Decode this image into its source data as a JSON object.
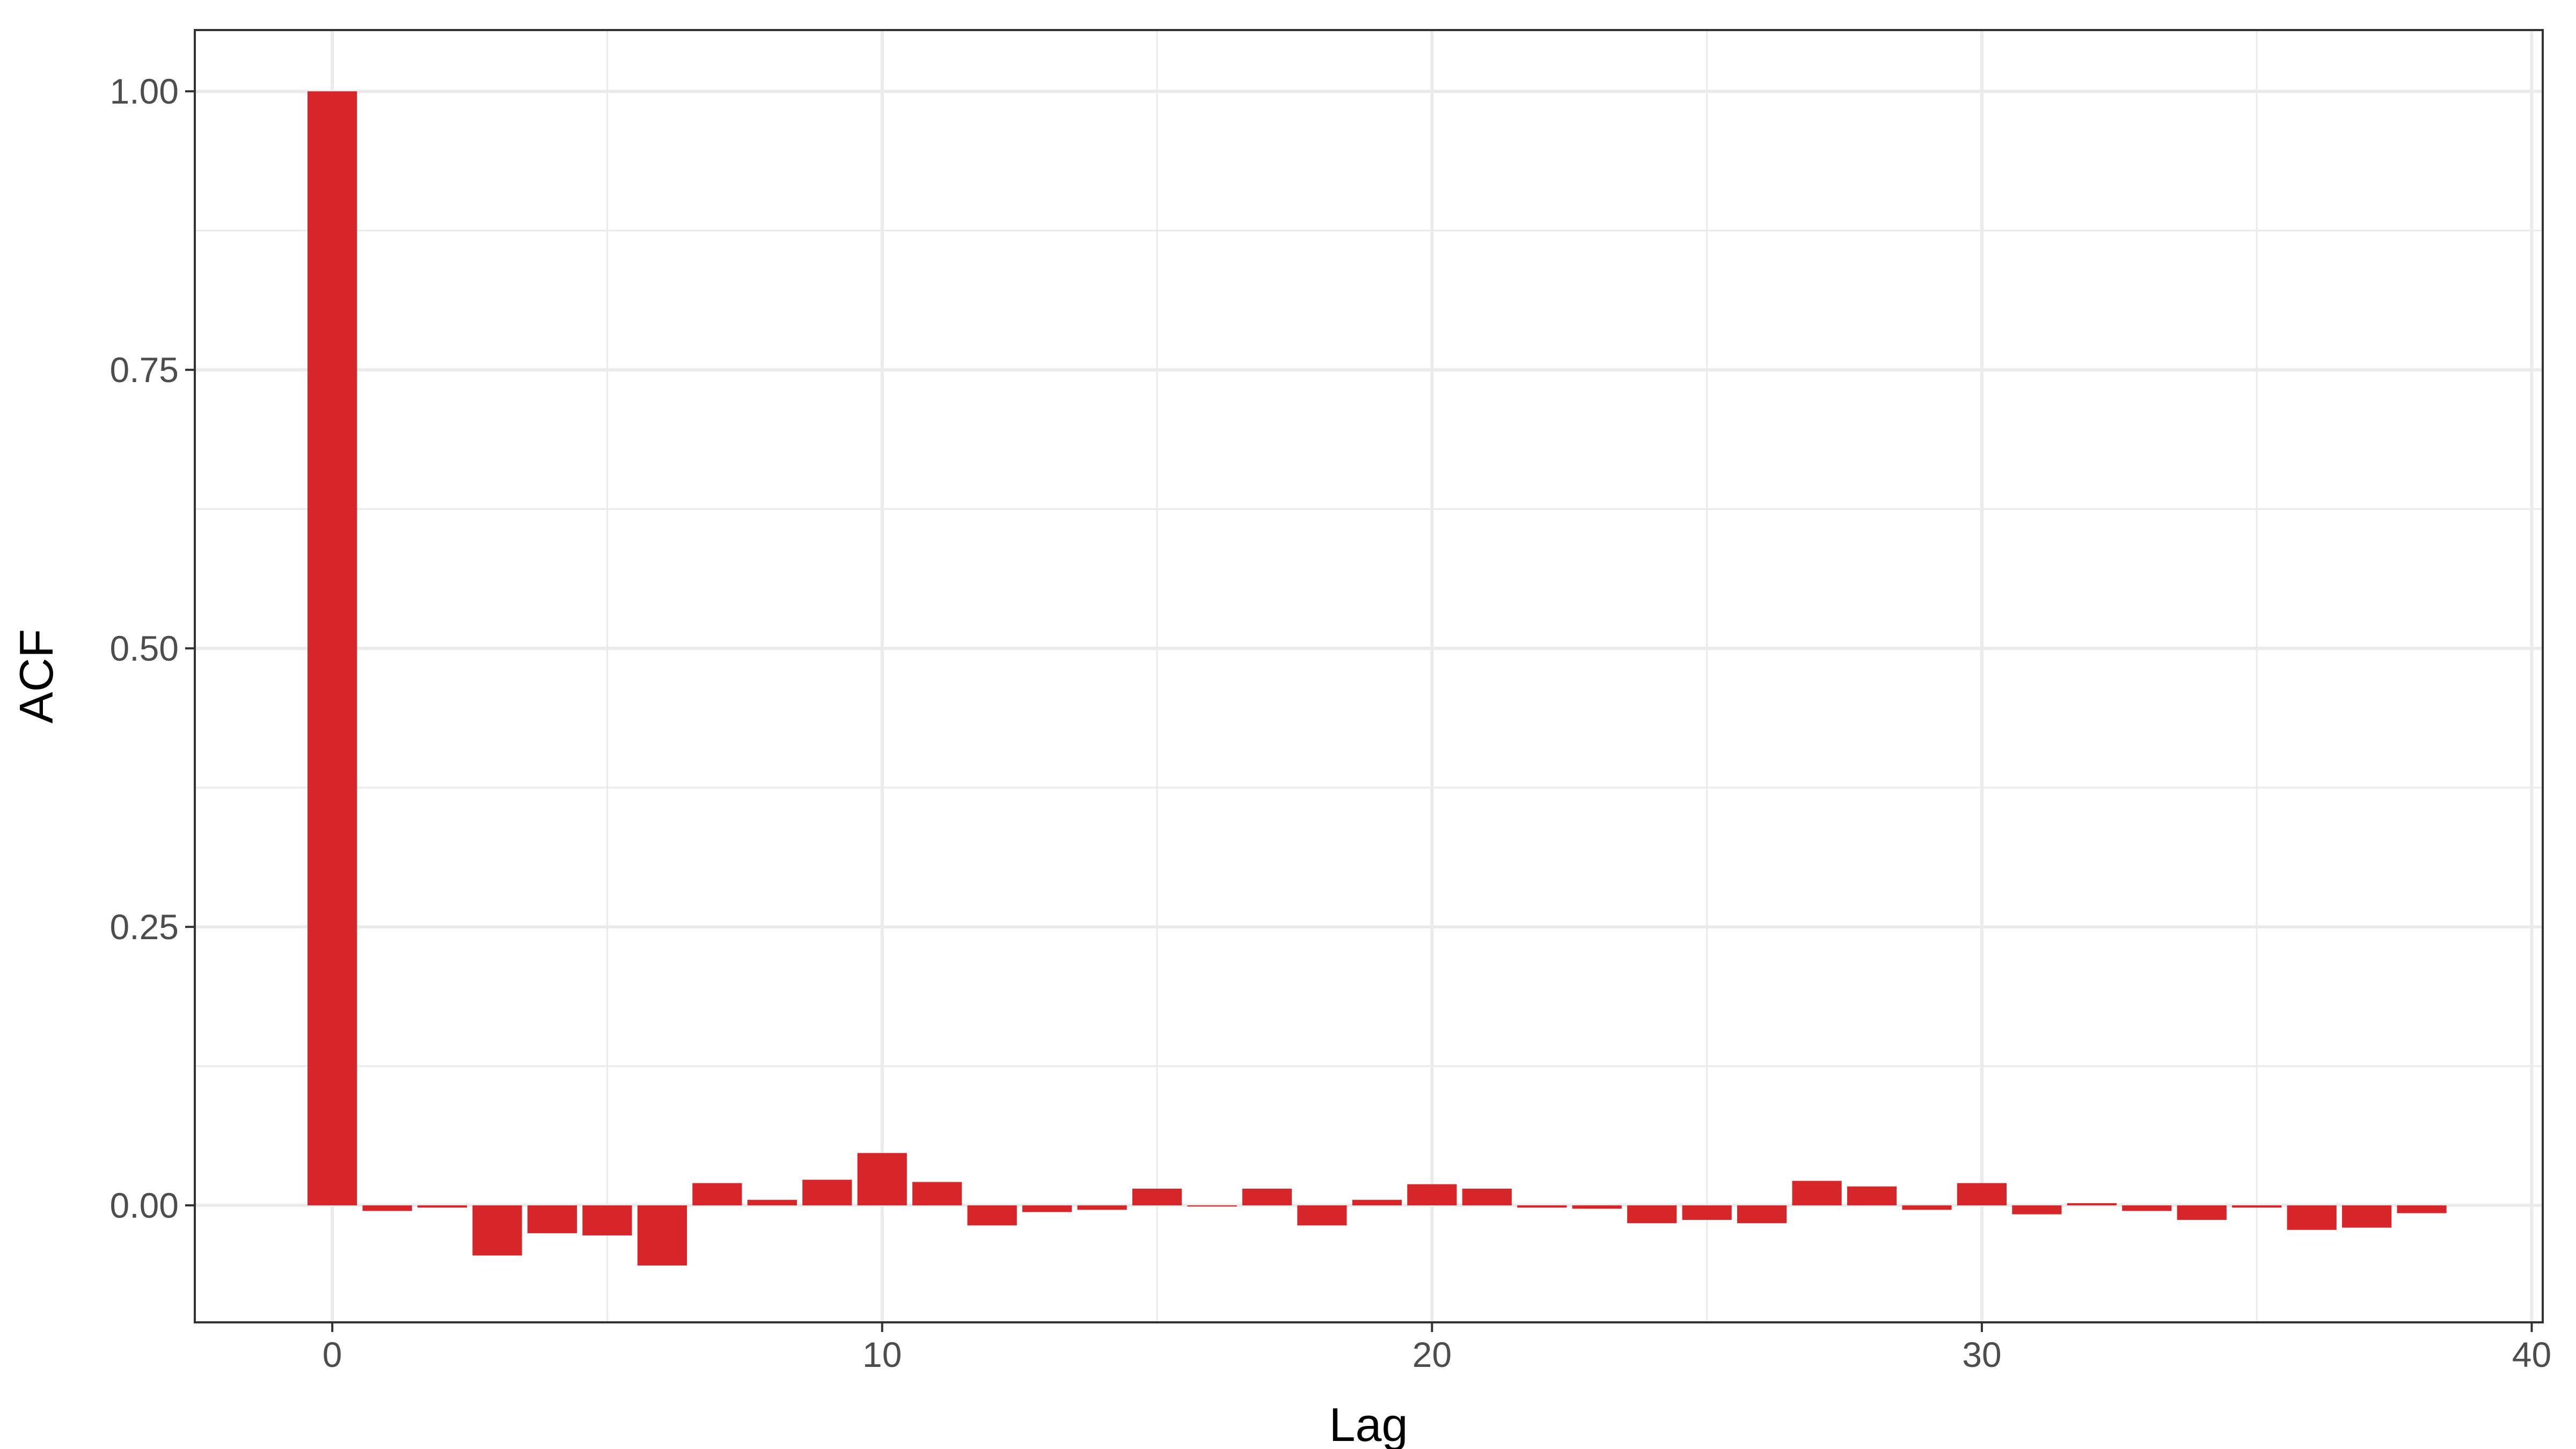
{
  "chart_data": {
    "type": "bar",
    "xlabel": "Lag",
    "ylabel": "ACF",
    "xlim": [
      -2.5,
      40.2
    ],
    "ylim": [
      -0.105,
      1.055
    ],
    "x_ticks": [
      0,
      10,
      20,
      30,
      40
    ],
    "x_tick_labels": [
      "0",
      "10",
      "20",
      "30",
      "40"
    ],
    "x_minor_ticks": [
      5,
      15,
      25,
      35
    ],
    "y_ticks": [
      0,
      0.25,
      0.5,
      0.75,
      1.0
    ],
    "y_tick_labels": [
      "0.00",
      "0.25",
      "0.50",
      "0.75",
      "1.00"
    ],
    "y_minor_ticks": [
      0.125,
      0.375,
      0.625,
      0.875
    ],
    "grid": true,
    "series": [
      {
        "color": "#d7262a",
        "x": [
          0,
          1,
          2,
          3,
          4,
          5,
          6,
          7,
          8,
          9,
          10,
          11,
          12,
          13,
          14,
          15,
          16,
          17,
          18,
          19,
          20,
          21,
          22,
          23,
          24,
          25,
          26,
          27,
          28,
          29,
          30,
          31,
          32,
          33,
          34,
          35,
          36,
          37,
          38
        ],
        "values": [
          1.0,
          -0.005,
          -0.002,
          -0.045,
          -0.025,
          -0.027,
          -0.054,
          0.02,
          0.005,
          0.023,
          0.047,
          0.021,
          -0.018,
          -0.006,
          -0.004,
          0.015,
          -0.001,
          0.015,
          -0.018,
          0.005,
          0.019,
          0.015,
          -0.002,
          -0.003,
          -0.016,
          -0.013,
          -0.016,
          0.022,
          0.017,
          -0.004,
          0.02,
          -0.008,
          0.002,
          -0.005,
          -0.013,
          -0.002,
          -0.022,
          -0.02,
          -0.007
        ]
      }
    ]
  }
}
